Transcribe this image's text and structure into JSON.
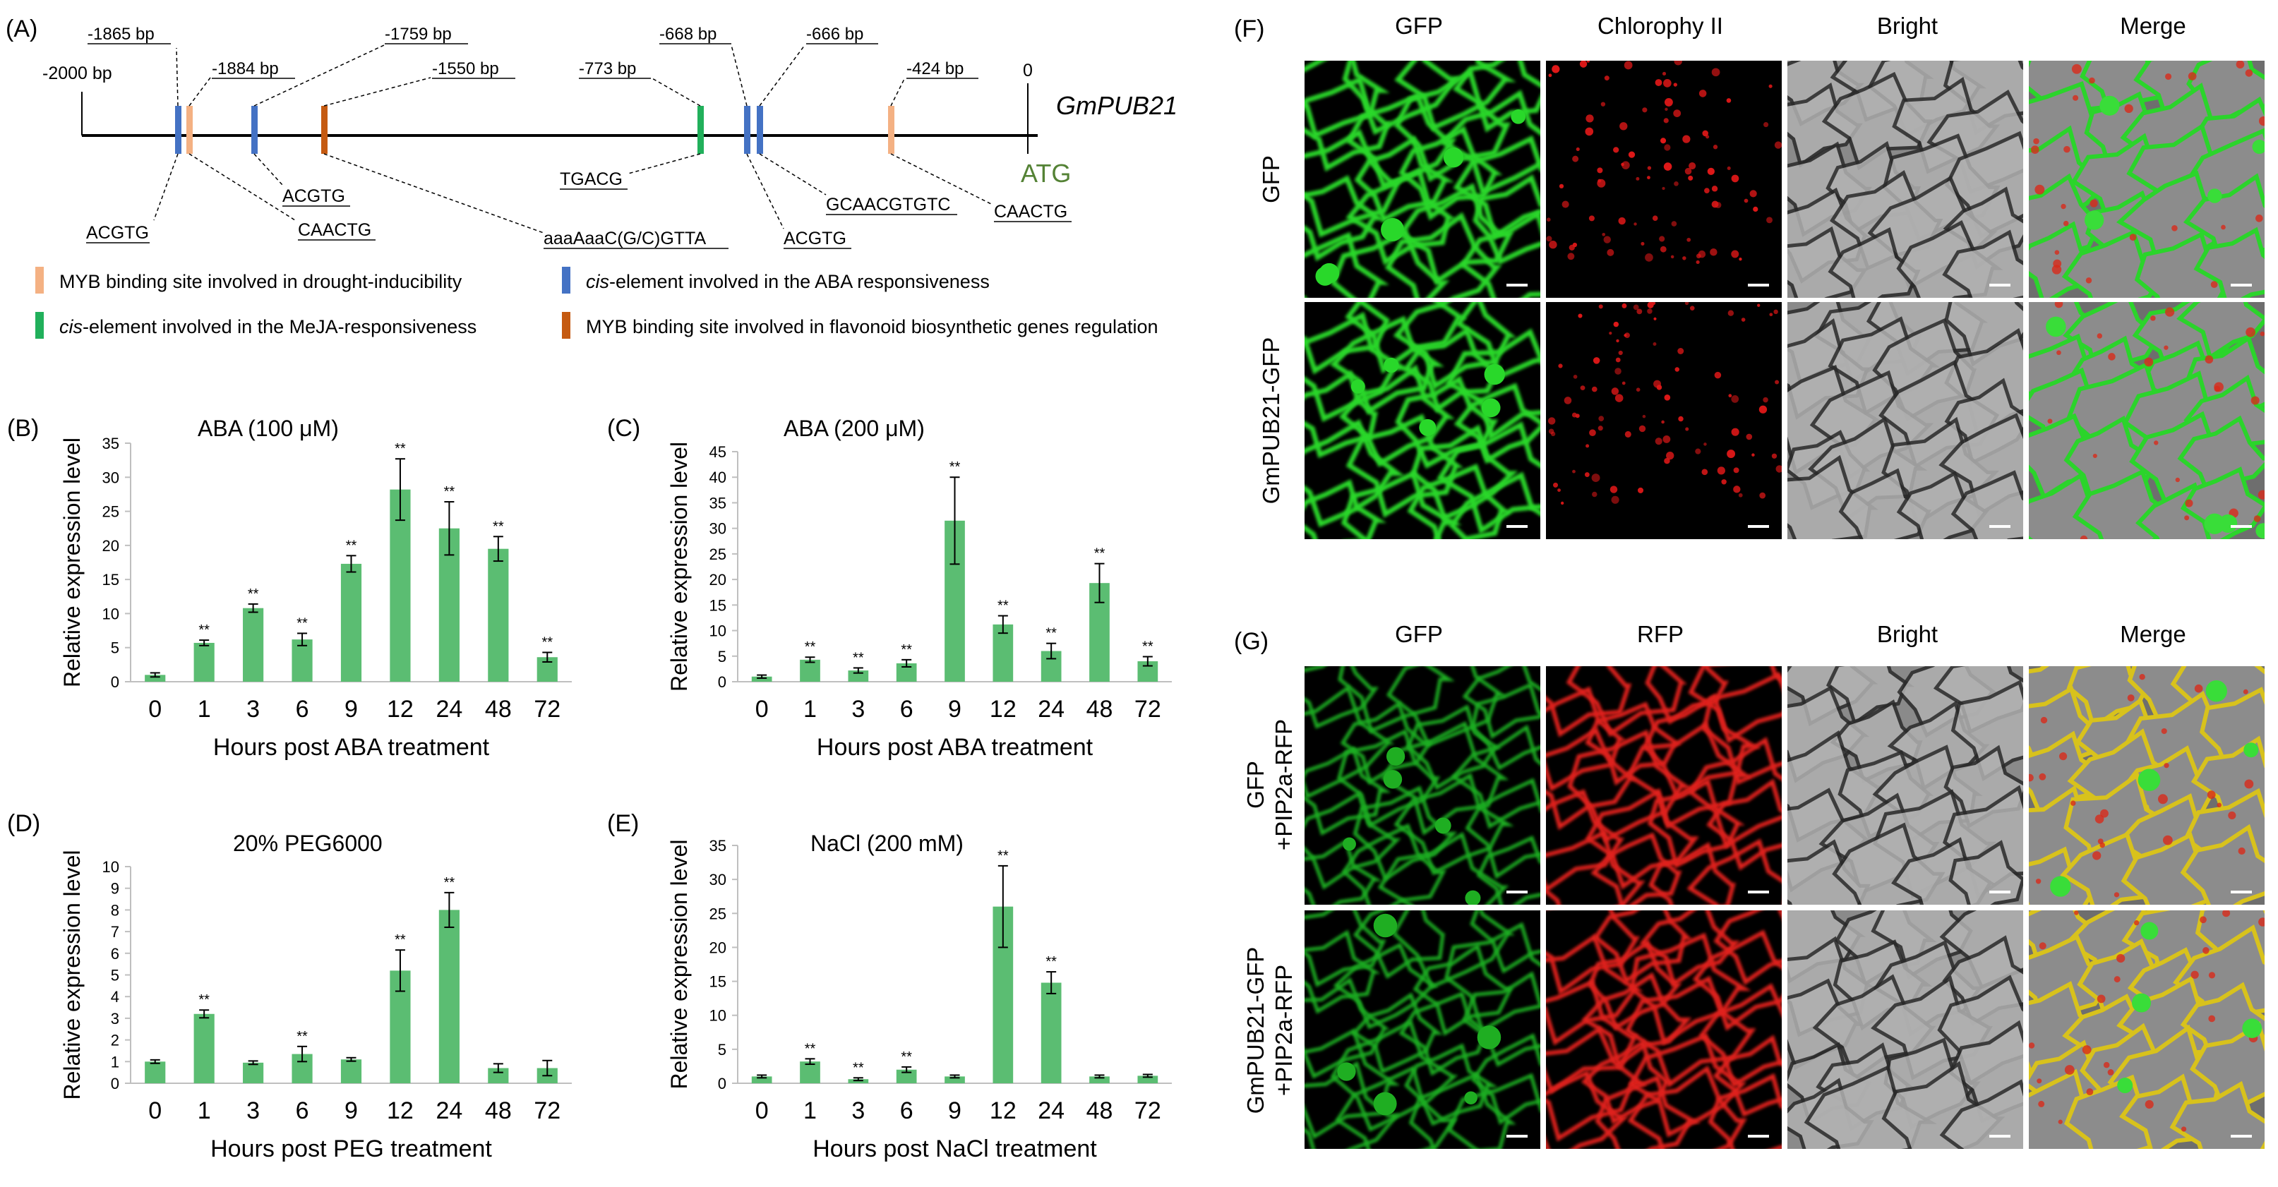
{
  "panel_a": {
    "label": "(A)",
    "gene": "GmPUB21",
    "start_label": "-2000 bp",
    "atg_pos": "0",
    "atg_label": "ATG",
    "sites": [
      {
        "pos_label": "-1865 bp",
        "seq": "ACGTG",
        "type": "aba"
      },
      {
        "pos_label": "-1884 bp",
        "seq": "CAACTG",
        "type": "drought"
      },
      {
        "pos_label": "-1759 bp",
        "seq": "ACGTG",
        "type": "aba"
      },
      {
        "pos_label": "-1550 bp",
        "seq": "aaaAaaC(G/C)GTTA",
        "type": "flavonoid"
      },
      {
        "pos_label": "-773 bp",
        "seq": "TGACG",
        "type": "meja"
      },
      {
        "pos_label": "-668 bp",
        "seq": "ACGTG",
        "type": "aba"
      },
      {
        "pos_label": "-666 bp",
        "seq": "GCAACGTGTC",
        "type": "aba"
      },
      {
        "pos_label": "-424 bp",
        "seq": "CAACTG",
        "type": "drought"
      }
    ],
    "legend": [
      {
        "key": "drought",
        "pre": "",
        "italic": "",
        "text": "MYB binding site involved in drought-inducibility"
      },
      {
        "key": "aba",
        "pre": "",
        "italic": "cis",
        "text": "-element involved in the ABA responsiveness"
      },
      {
        "key": "meja",
        "pre": "",
        "italic": "cis",
        "text": "-element involved in the MeJA-responsiveness"
      },
      {
        "key": "flavonoid",
        "pre": "",
        "italic": "",
        "text": "MYB binding site involved in flavonoid biosynthetic genes regulation"
      }
    ],
    "colors": {
      "drought": "#f4b183",
      "aba": "#4472c4",
      "meja": "#21b05b",
      "flavonoid": "#c55a11",
      "atg": "#548235"
    }
  },
  "bar_color": "#5bbd72",
  "chart_data": [
    {
      "panel": "(B)",
      "type": "bar",
      "title": "ABA (100 μM)",
      "xlabel": "Hours post ABA treatment",
      "ylabel": "Relative expression level",
      "categories": [
        "0",
        "1",
        "3",
        "6",
        "9",
        "12",
        "24",
        "48",
        "72"
      ],
      "values": [
        1.0,
        5.7,
        10.8,
        6.2,
        17.3,
        28.2,
        22.5,
        19.5,
        3.6
      ],
      "errors": [
        0.3,
        0.4,
        0.6,
        0.9,
        1.2,
        4.5,
        3.9,
        1.8,
        0.7
      ],
      "sig": [
        "",
        "**",
        "**",
        "**",
        "**",
        "**",
        "**",
        "**",
        "**"
      ],
      "ylim": [
        0,
        35
      ],
      "yticks": [
        "0",
        "5",
        "10",
        "15",
        "20",
        "25",
        "30",
        "35"
      ]
    },
    {
      "panel": "(C)",
      "type": "bar",
      "title": "ABA (200 μM)",
      "xlabel": "Hours post ABA treatment",
      "ylabel": "Relative expression level",
      "categories": [
        "0",
        "1",
        "3",
        "6",
        "9",
        "12",
        "24",
        "48",
        "72"
      ],
      "values": [
        1.0,
        4.3,
        2.2,
        3.6,
        31.5,
        11.2,
        6.0,
        19.3,
        4.0
      ],
      "errors": [
        0.3,
        0.5,
        0.5,
        0.7,
        8.5,
        1.7,
        1.5,
        3.8,
        0.9
      ],
      "sig": [
        "",
        "**",
        "**",
        "**",
        "**",
        "**",
        "**",
        "**",
        "**"
      ],
      "ylim": [
        0,
        45
      ],
      "yticks": [
        "0",
        "5",
        "10",
        "15",
        "20",
        "25",
        "30",
        "35",
        "40",
        "45"
      ]
    },
    {
      "panel": "(D)",
      "type": "bar",
      "title": "20% PEG6000",
      "xlabel": "Hours post PEG treatment",
      "ylabel": "Relative expression level",
      "categories": [
        "0",
        "1",
        "3",
        "6",
        "9",
        "12",
        "24",
        "48",
        "72"
      ],
      "values": [
        1.0,
        3.2,
        0.95,
        1.35,
        1.1,
        5.2,
        8.0,
        0.7,
        0.7
      ],
      "errors": [
        0.08,
        0.18,
        0.08,
        0.35,
        0.08,
        0.95,
        0.8,
        0.2,
        0.35
      ],
      "sig": [
        "",
        "**",
        "",
        "**",
        "",
        "**",
        "**",
        "",
        ""
      ],
      "ylim": [
        0,
        10
      ],
      "yticks": [
        "0",
        "1",
        "2",
        "3",
        "4",
        "5",
        "6",
        "7",
        "8",
        "9",
        "10"
      ]
    },
    {
      "panel": "(E)",
      "type": "bar",
      "title": "NaCl (200 mM)",
      "xlabel": "Hours post NaCl treatment",
      "ylabel": "Relative expression level",
      "categories": [
        "0",
        "1",
        "3",
        "6",
        "9",
        "12",
        "24",
        "48",
        "72"
      ],
      "values": [
        1.0,
        3.2,
        0.6,
        2.0,
        1.0,
        26.0,
        14.8,
        1.0,
        1.1
      ],
      "errors": [
        0.2,
        0.4,
        0.2,
        0.4,
        0.2,
        6.0,
        1.6,
        0.2,
        0.2
      ],
      "sig": [
        "",
        "**",
        "**",
        "**",
        "",
        "**",
        "**",
        "",
        ""
      ],
      "ylim": [
        0,
        35
      ],
      "yticks": [
        "0",
        "5",
        "10",
        "15",
        "20",
        "25",
        "30",
        "35"
      ]
    }
  ],
  "panel_f": {
    "label": "(F)",
    "columns": [
      "GFP",
      "Chlorophy II",
      "Bright",
      "Merge"
    ],
    "rows": [
      "GFP",
      "GmPUB21-GFP"
    ]
  },
  "panel_g": {
    "label": "(G)",
    "columns": [
      "GFP",
      "RFP",
      "Bright",
      "Merge"
    ],
    "rows": [
      [
        "GFP",
        "+PIP2a-RFP"
      ],
      [
        "GmPUB21-GFP",
        "+PIP2a-RFP"
      ]
    ]
  }
}
